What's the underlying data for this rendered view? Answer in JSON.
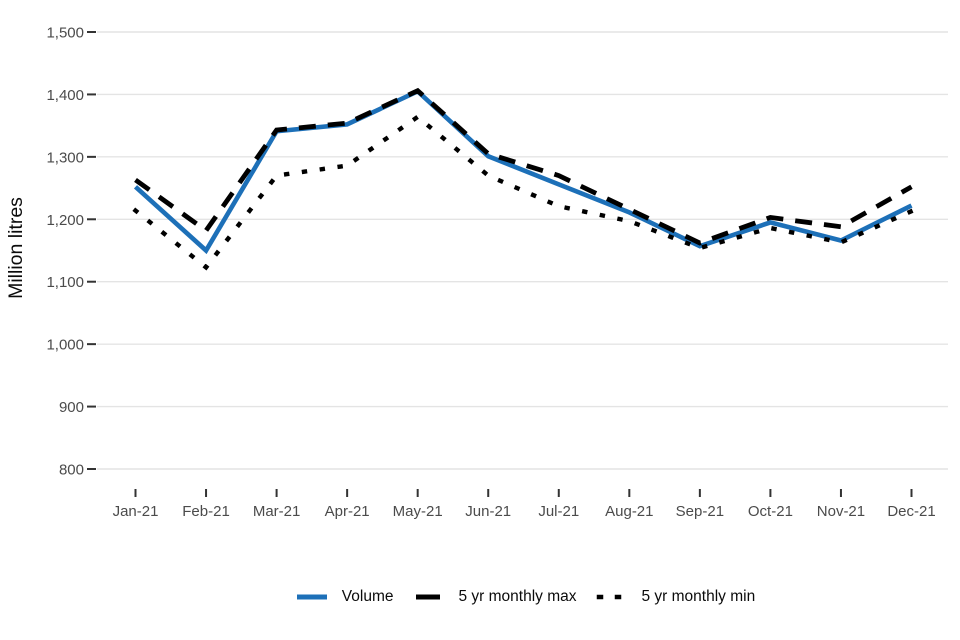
{
  "chart_data": {
    "type": "line",
    "ylabel": "Million litres",
    "categories": [
      "Jan-21",
      "Feb-21",
      "Mar-21",
      "Apr-21",
      "May-21",
      "Jun-21",
      "Jul-21",
      "Aug-21",
      "Sep-21",
      "Oct-21",
      "Nov-21",
      "Dec-21"
    ],
    "y_axis": {
      "min": 800,
      "max": 1500,
      "ticks": [
        {
          "value": 800,
          "label": "800"
        },
        {
          "value": 900,
          "label": "900"
        },
        {
          "value": 1000,
          "label": "1,000"
        },
        {
          "value": 1100,
          "label": "1,100"
        },
        {
          "value": 1200,
          "label": "1,200"
        },
        {
          "value": 1300,
          "label": "1,300"
        },
        {
          "value": 1400,
          "label": "1,400"
        },
        {
          "value": 1500,
          "label": "1,500"
        }
      ]
    },
    "grid": "horizontal-only",
    "legend_position": "bottom-center",
    "series": [
      {
        "name": "Volume",
        "style": "solid",
        "color": "#1d70b8",
        "values": [
          1252,
          1150,
          1341,
          1352,
          1405,
          1301,
          1256,
          1211,
          1157,
          1195,
          1166,
          1222
        ]
      },
      {
        "name": "5 yr monthly max",
        "style": "dashed",
        "color": "#000000",
        "values": [
          1263,
          1182,
          1343,
          1354,
          1406,
          1305,
          1270,
          1216,
          1162,
          1203,
          1188,
          1252
        ]
      },
      {
        "name": "5 yr monthly min",
        "style": "dotted",
        "color": "#000000",
        "values": [
          1214,
          1123,
          1270,
          1286,
          1364,
          1270,
          1221,
          1197,
          1154,
          1186,
          1163,
          1213
        ]
      }
    ],
    "colors": {
      "gridline": "#e4e4e4",
      "tick_mark": "#333333",
      "tick_text": "#4b4b4b",
      "axis_title_text": "#0b0b0b",
      "legend_text": "#0b0b0b"
    }
  }
}
